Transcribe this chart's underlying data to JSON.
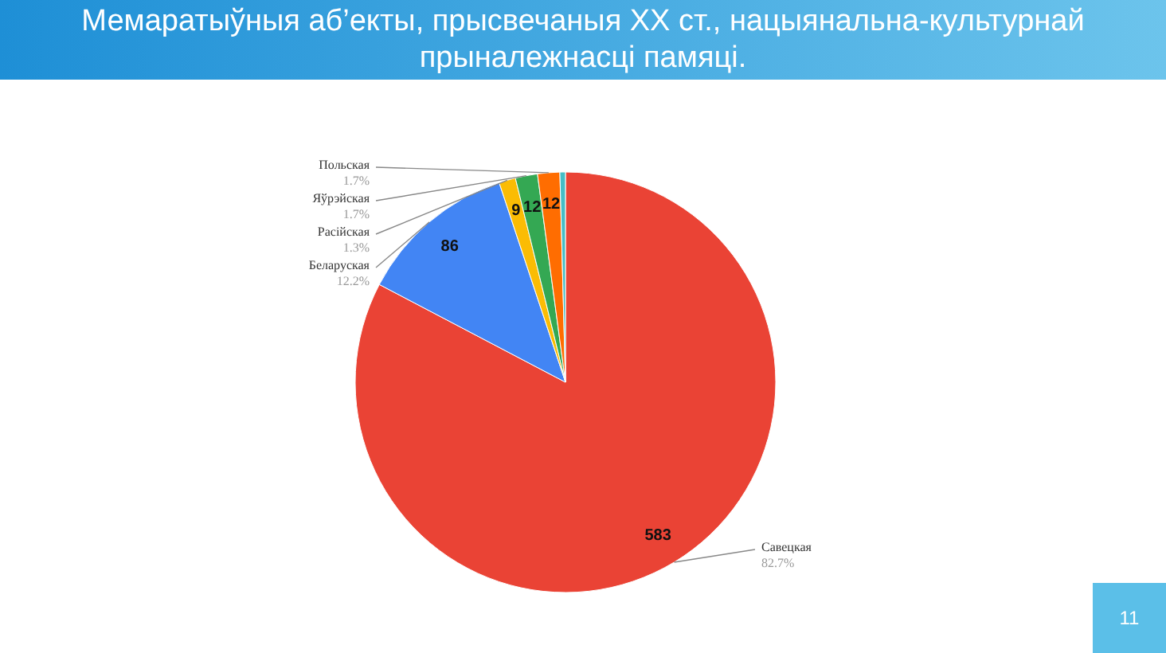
{
  "chart_data": {
    "type": "pie",
    "title": "Мемаратыўныя аб’екты, прысвечаныя XX ст., нацыянальна-культурнай прыналежнасці памяці.",
    "categories": [
      "Савецкая",
      "Беларуская",
      "Расійская",
      "Яўрэйская",
      "Польская",
      null
    ],
    "values": [
      583,
      86,
      9,
      12,
      12,
      3
    ],
    "colors": [
      "#ea4335",
      "#4285f4",
      "#fbbc04",
      "#34a853",
      "#ff6d01",
      "#46bdc6"
    ],
    "value_labels": [
      "583",
      "86",
      "9",
      "12",
      "12",
      null
    ],
    "annotations": [
      {
        "text": "82.7%",
        "x": "Савецкая"
      },
      {
        "text": "12.2%",
        "x": "Беларуская"
      },
      {
        "text": "1.3%",
        "x": "Расійская"
      },
      {
        "text": "1.7%",
        "x": "Яўрэйская"
      },
      {
        "text": "1.7%",
        "x": "Польская"
      },
      "11"
    ]
  }
}
